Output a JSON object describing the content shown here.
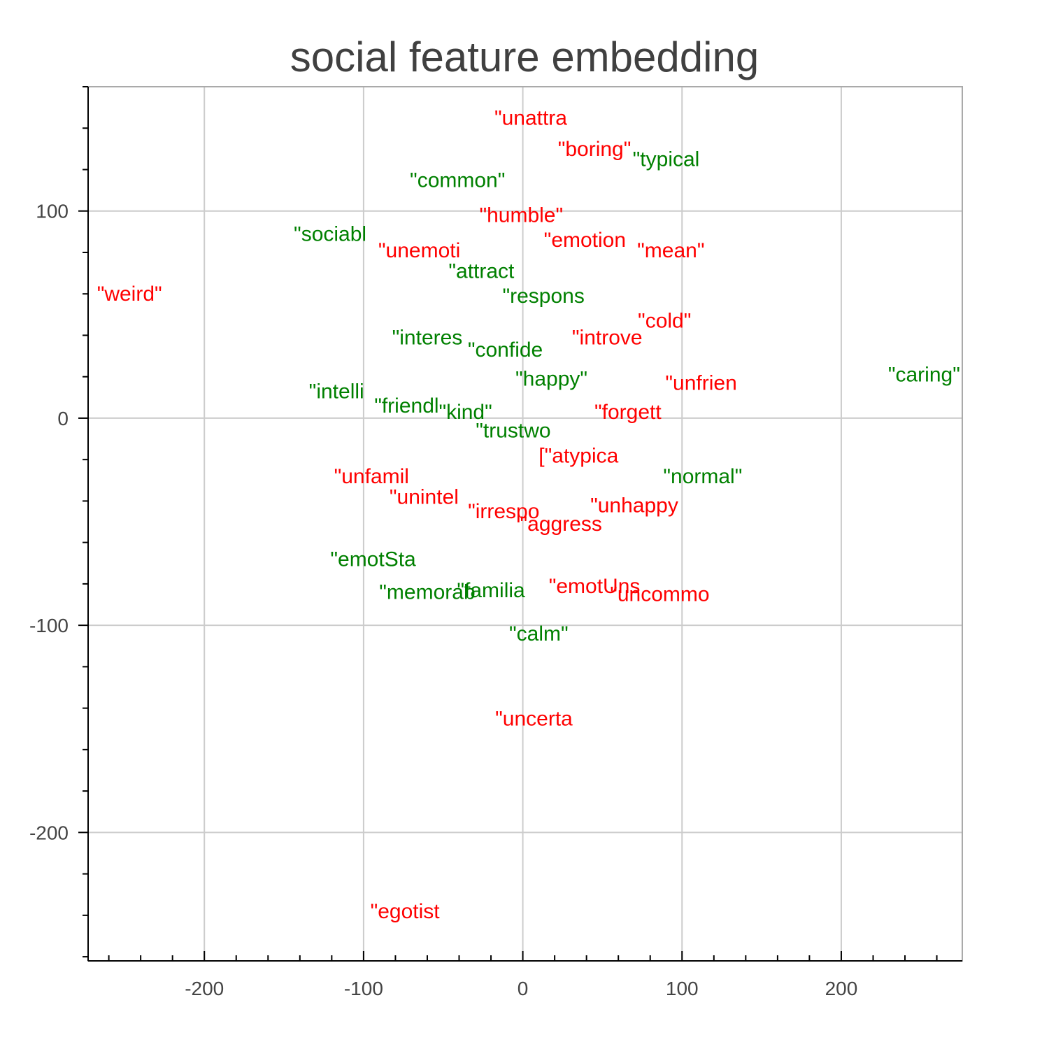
{
  "chart_data": {
    "type": "scatter",
    "title": "social feature embedding",
    "xlabel": "",
    "ylabel": "",
    "xlim": [
      -273,
      276
    ],
    "ylim": [
      -262,
      160
    ],
    "x_ticks": [
      -200,
      -100,
      0,
      100,
      200
    ],
    "y_ticks": [
      100,
      0,
      -100,
      -200
    ],
    "x_minor_step": 20,
    "y_minor_step": 20,
    "grid": true,
    "colors": {
      "positive": "#008000",
      "negative": "#ff0000"
    },
    "points": [
      {
        "label": "\"unattra",
        "x": 5,
        "y": 145,
        "group": "negative"
      },
      {
        "label": "\"boring\"",
        "x": 45,
        "y": 130,
        "group": "negative"
      },
      {
        "label": "\"typical",
        "x": 90,
        "y": 125,
        "group": "positive"
      },
      {
        "label": "\"common\"",
        "x": -41,
        "y": 115,
        "group": "positive"
      },
      {
        "label": "\"humble\"",
        "x": -1,
        "y": 98,
        "group": "negative"
      },
      {
        "label": "\"sociabl",
        "x": -121,
        "y": 89,
        "group": "positive"
      },
      {
        "label": "\"emotion",
        "x": 39,
        "y": 86,
        "group": "negative"
      },
      {
        "label": "\"mean\"",
        "x": 93,
        "y": 81,
        "group": "negative"
      },
      {
        "label": "\"unemoti",
        "x": -65,
        "y": 81,
        "group": "negative"
      },
      {
        "label": "\"attract",
        "x": -26,
        "y": 71,
        "group": "positive"
      },
      {
        "label": "\"weird\"",
        "x": -247,
        "y": 60,
        "group": "negative"
      },
      {
        "label": "\"respons",
        "x": 13,
        "y": 59,
        "group": "positive"
      },
      {
        "label": "\"cold\"",
        "x": 89,
        "y": 47,
        "group": "negative"
      },
      {
        "label": "\"interes",
        "x": -60,
        "y": 39,
        "group": "positive"
      },
      {
        "label": "\"introve",
        "x": 53,
        "y": 39,
        "group": "negative"
      },
      {
        "label": "\"confide",
        "x": -11,
        "y": 33,
        "group": "positive"
      },
      {
        "label": "\"caring\"",
        "x": 252,
        "y": 21,
        "group": "positive"
      },
      {
        "label": "\"happy\"",
        "x": 18,
        "y": 19,
        "group": "positive"
      },
      {
        "label": "\"unfrien",
        "x": 112,
        "y": 17,
        "group": "negative"
      },
      {
        "label": "\"intelli",
        "x": -117,
        "y": 13,
        "group": "positive"
      },
      {
        "label": "\"friendl",
        "x": -73,
        "y": 6,
        "group": "positive"
      },
      {
        "label": "\"kind\"",
        "x": -36,
        "y": 3,
        "group": "positive"
      },
      {
        "label": "\"forgett",
        "x": 66,
        "y": 3,
        "group": "negative"
      },
      {
        "label": "\"trustwo",
        "x": -6,
        "y": -6,
        "group": "positive"
      },
      {
        "label": "[\"atypica",
        "x": 35,
        "y": -18,
        "group": "negative"
      },
      {
        "label": "\"unfamil",
        "x": -95,
        "y": -28,
        "group": "negative"
      },
      {
        "label": "\"normal\"",
        "x": 113,
        "y": -28,
        "group": "positive"
      },
      {
        "label": "\"unintel",
        "x": -62,
        "y": -38,
        "group": "negative"
      },
      {
        "label": "\"unhappy",
        "x": 70,
        "y": -42,
        "group": "negative"
      },
      {
        "label": "\"irrespo",
        "x": -12,
        "y": -45,
        "group": "negative"
      },
      {
        "label": "\"aggress",
        "x": 24,
        "y": -51,
        "group": "negative"
      },
      {
        "label": "\"emotSta",
        "x": -94,
        "y": -68,
        "group": "positive"
      },
      {
        "label": "\"emotUns",
        "x": 45,
        "y": -81,
        "group": "negative"
      },
      {
        "label": "\"familia",
        "x": -20,
        "y": -83,
        "group": "positive"
      },
      {
        "label": "\"memorab",
        "x": -60,
        "y": -84,
        "group": "positive"
      },
      {
        "label": "\"uncommo",
        "x": 86,
        "y": -85,
        "group": "negative"
      },
      {
        "label": "\"calm\"",
        "x": 10,
        "y": -104,
        "group": "positive"
      },
      {
        "label": "\"uncerta",
        "x": 7,
        "y": -145,
        "group": "negative"
      },
      {
        "label": "\"egotist",
        "x": -74,
        "y": -238,
        "group": "negative"
      }
    ]
  }
}
